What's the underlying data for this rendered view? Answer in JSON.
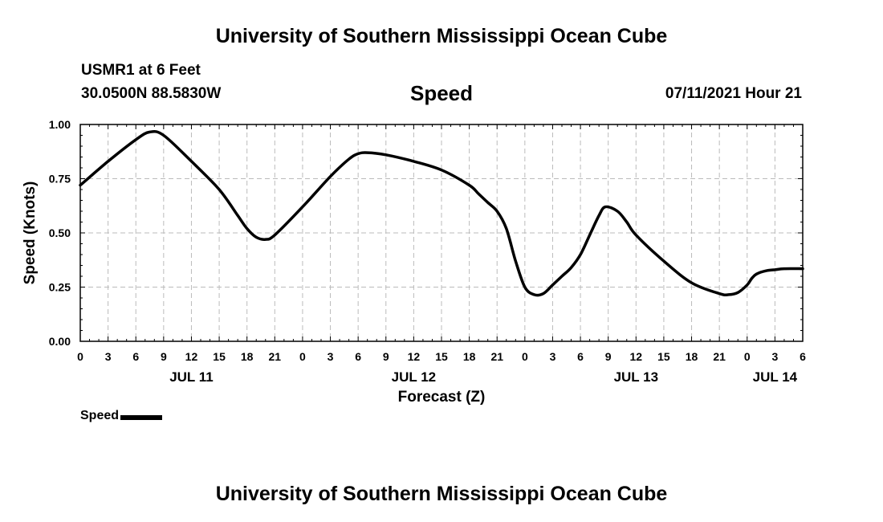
{
  "header": {
    "title": "University of Southern Mississippi Ocean Cube",
    "station": "USMR1 at 6 Feet",
    "coords": "30.0500N  88.5830W",
    "datetime": "07/11/2021 Hour 21",
    "footer_title": "University of Southern Mississippi Ocean Cube"
  },
  "chart_data": {
    "type": "line",
    "title": "Speed",
    "xlabel": "Forecast (Z)",
    "ylabel": "Speed (Knots)",
    "ylim": [
      0,
      1
    ],
    "xlim": [
      0,
      78
    ],
    "yticks": [
      "0.00",
      "0.25",
      "0.50",
      "0.75",
      "1.00"
    ],
    "ytick_values": [
      0,
      0.25,
      0.5,
      0.75,
      1.0
    ],
    "xtick_labels": [
      "0",
      "3",
      "6",
      "9",
      "12",
      "15",
      "18",
      "21",
      "0",
      "3",
      "6",
      "9",
      "12",
      "15",
      "18",
      "21",
      "0",
      "3",
      "6",
      "9",
      "12",
      "15",
      "18",
      "21",
      "0",
      "3",
      "6"
    ],
    "date_labels": [
      {
        "label": "JUL 11",
        "at": 12
      },
      {
        "label": "JUL 12",
        "at": 36
      },
      {
        "label": "JUL 13",
        "at": 60
      },
      {
        "label": "JUL 14",
        "at": 75
      }
    ],
    "grid": true,
    "legend_position": "bottom-left",
    "series": [
      {
        "name": "Speed",
        "color": "#000000",
        "x": [
          0,
          3,
          6,
          7.5,
          9,
          12,
          15,
          17,
          18,
          19,
          20,
          21,
          24,
          27,
          29,
          30,
          31,
          33,
          36,
          39,
          42,
          43,
          44,
          45,
          46,
          47,
          48,
          49,
          50,
          51,
          52,
          53,
          54,
          55,
          56,
          56.7,
          58,
          59,
          60,
          63,
          66,
          69,
          70,
          71,
          72,
          72.5,
          73,
          74,
          75,
          76,
          78
        ],
        "values": [
          0.72,
          0.83,
          0.93,
          0.965,
          0.95,
          0.83,
          0.7,
          0.58,
          0.52,
          0.48,
          0.47,
          0.49,
          0.62,
          0.76,
          0.84,
          0.865,
          0.87,
          0.86,
          0.83,
          0.79,
          0.72,
          0.68,
          0.64,
          0.6,
          0.52,
          0.37,
          0.25,
          0.215,
          0.22,
          0.26,
          0.3,
          0.34,
          0.4,
          0.49,
          0.58,
          0.62,
          0.6,
          0.55,
          0.49,
          0.37,
          0.27,
          0.22,
          0.215,
          0.225,
          0.26,
          0.29,
          0.31,
          0.325,
          0.33,
          0.335,
          0.335
        ]
      }
    ]
  }
}
